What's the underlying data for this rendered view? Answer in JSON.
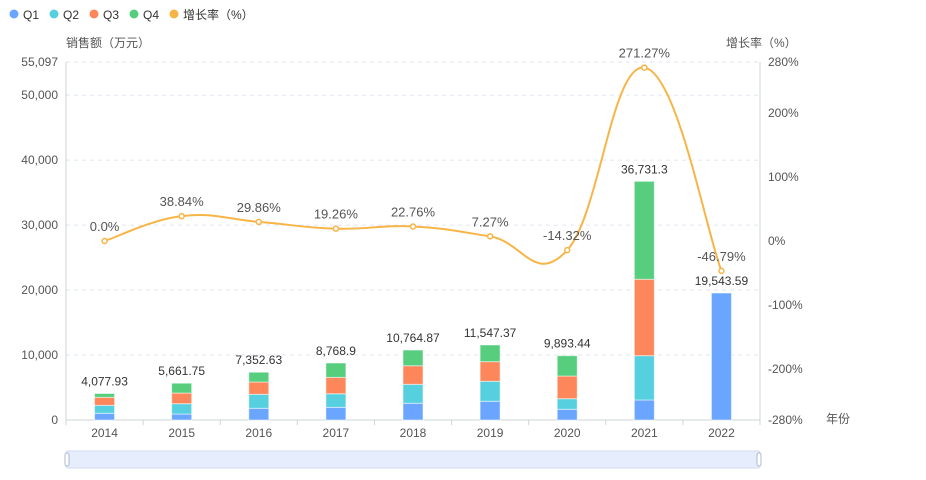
{
  "chart_data": {
    "type": "bar",
    "stacked": true,
    "categories": [
      "2014",
      "2015",
      "2016",
      "2017",
      "2018",
      "2019",
      "2020",
      "2021",
      "2022"
    ],
    "xlabel": "年份",
    "ylabel": "销售额（万元）",
    "y2label": "增长率（%）",
    "ylim": [
      0,
      55097
    ],
    "y_ticks": [
      "0",
      "10,000",
      "20,000",
      "30,000",
      "40,000",
      "50,000",
      "55,097"
    ],
    "y_tick_values": [
      0,
      10000,
      20000,
      30000,
      40000,
      50000,
      55097
    ],
    "y2lim": [
      -280,
      280
    ],
    "y2_ticks": [
      "-280%",
      "-200%",
      "-100%",
      "0%",
      "100%",
      "200%",
      "280%"
    ],
    "y2_tick_values": [
      -280,
      -200,
      -100,
      0,
      100,
      200,
      280
    ],
    "legend_position": "top-left",
    "series": [
      {
        "name": "Q1",
        "color": "#6aa6ff",
        "values": [
          1030,
          920,
          1800,
          1950,
          2570,
          2880,
          1650,
          3080,
          19543.59
        ]
      },
      {
        "name": "Q2",
        "color": "#56d0de",
        "values": [
          1230,
          1590,
          2155,
          2090,
          2920,
          3080,
          1630,
          6820,
          0
        ]
      },
      {
        "name": "Q3",
        "color": "#fd875b",
        "values": [
          1230,
          1640,
          1890,
          2520,
          2860,
          3020,
          3490,
          11760,
          0
        ]
      },
      {
        "name": "Q4",
        "color": "#56ce7e",
        "values": [
          588,
          1512,
          1508,
          2209,
          2415,
          2567,
          3123,
          15071,
          0
        ]
      }
    ],
    "totals": [
      4077.93,
      5661.75,
      7352.63,
      8768.9,
      10764.87,
      11547.37,
      9893.44,
      36731.3,
      19543.59
    ],
    "total_labels": [
      "4,077.93",
      "5,661.75",
      "7,352.63",
      "8,768.9",
      "10,764.87",
      "11,547.37",
      "9,893.44",
      "36,731.3",
      "19,543.59"
    ],
    "growth": {
      "name": "增长率（%）",
      "color": "#f7b548",
      "values": [
        0.0,
        38.84,
        29.86,
        19.26,
        22.76,
        7.27,
        -14.32,
        271.27,
        -46.79
      ],
      "labels": [
        "0.0%",
        "38.84%",
        "29.86%",
        "19.26%",
        "22.76%",
        "7.27%",
        "-14.32%",
        "271.27%",
        "-46.79%"
      ]
    }
  }
}
